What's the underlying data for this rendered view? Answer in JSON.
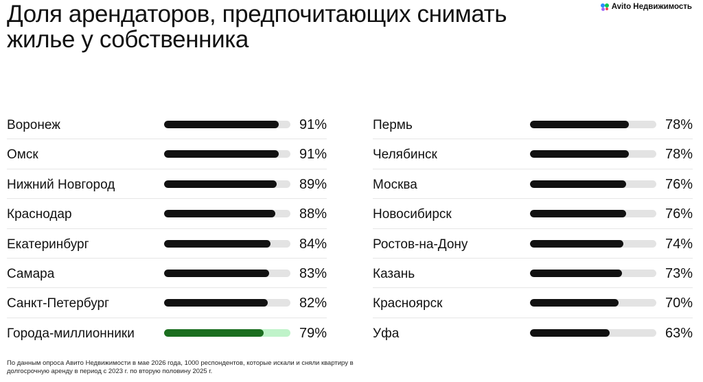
{
  "title": "Доля арендаторов, предпочитающих снимать жилье у собственника",
  "brand": {
    "logo_icon": "avito-logo-icon",
    "name": "Avito Недвижимость"
  },
  "footnote": "По данным опроса Авито Недвижимости в мае 2026 года, 1000 респондентов, которые искали и сняли квартиру в долгосрочную аренду в период с 2023 г. по вторую половину 2025 г.",
  "colors": {
    "bar": "#111111",
    "track": "#e3e3e3",
    "highlight_bar": "#1b6e1f",
    "highlight_track": "#bff3c9"
  },
  "chart_data": [
    {
      "type": "bar",
      "orientation": "horizontal",
      "xlim": [
        0,
        100
      ],
      "unit": "%",
      "highlight": "Города-миллионники",
      "categories": [
        "Воронеж",
        "Омск",
        "Нижний Новгород",
        "Краснодар",
        "Екатеринбург",
        "Самара",
        "Санкт-Петербург",
        "Города-миллионники"
      ],
      "values": [
        91,
        91,
        89,
        88,
        84,
        83,
        82,
        79
      ],
      "labels": [
        "91%",
        "91%",
        "89%",
        "88%",
        "84%",
        "83%",
        "82%",
        "79%"
      ]
    },
    {
      "type": "bar",
      "orientation": "horizontal",
      "xlim": [
        0,
        100
      ],
      "unit": "%",
      "categories": [
        "Пермь",
        "Челябинск",
        "Москва",
        "Новосибирск",
        "Ростов-на-Дону",
        "Казань",
        "Красноярск",
        "Уфа"
      ],
      "values": [
        78,
        78,
        76,
        76,
        74,
        73,
        70,
        63
      ],
      "labels": [
        "78%",
        "78%",
        "76%",
        "76%",
        "74%",
        "73%",
        "70%",
        "63%"
      ]
    }
  ]
}
